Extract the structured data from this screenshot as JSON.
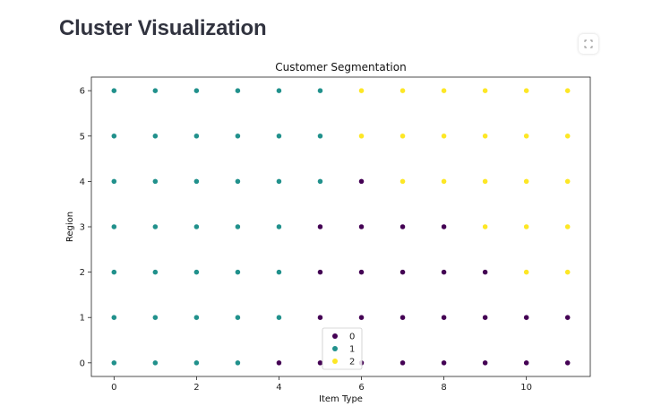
{
  "page": {
    "title": "Cluster Visualization"
  },
  "toolbar": {
    "fullscreen_icon": "fullscreen-icon"
  },
  "chart_data": {
    "type": "scatter",
    "title": "Customer Segmentation",
    "xlabel": "Item Type",
    "ylabel": "Region",
    "xlim": [
      -0.55,
      11.55
    ],
    "ylim": [
      -0.3,
      6.3
    ],
    "xticks": [
      0,
      2,
      4,
      6,
      8,
      10
    ],
    "yticks": [
      0,
      1,
      2,
      3,
      4,
      5,
      6
    ],
    "grid": false,
    "legend_position": "bottom-center",
    "colors": {
      "0": "#440154",
      "1": "#21918c",
      "2": "#fde725"
    },
    "series": [
      {
        "name": "0",
        "points": [
          [
            4,
            0
          ],
          [
            5,
            0
          ],
          [
            6,
            0
          ],
          [
            7,
            0
          ],
          [
            8,
            0
          ],
          [
            9,
            0
          ],
          [
            10,
            0
          ],
          [
            11,
            0
          ],
          [
            5,
            1
          ],
          [
            6,
            1
          ],
          [
            7,
            1
          ],
          [
            8,
            1
          ],
          [
            9,
            1
          ],
          [
            10,
            1
          ],
          [
            11,
            1
          ],
          [
            5,
            2
          ],
          [
            6,
            2
          ],
          [
            7,
            2
          ],
          [
            8,
            2
          ],
          [
            9,
            2
          ],
          [
            5,
            3
          ],
          [
            6,
            3
          ],
          [
            7,
            3
          ],
          [
            8,
            3
          ],
          [
            6,
            4
          ]
        ]
      },
      {
        "name": "1",
        "points": [
          [
            0,
            0
          ],
          [
            1,
            0
          ],
          [
            2,
            0
          ],
          [
            3,
            0
          ],
          [
            0,
            1
          ],
          [
            1,
            1
          ],
          [
            2,
            1
          ],
          [
            3,
            1
          ],
          [
            4,
            1
          ],
          [
            0,
            2
          ],
          [
            1,
            2
          ],
          [
            2,
            2
          ],
          [
            3,
            2
          ],
          [
            4,
            2
          ],
          [
            0,
            3
          ],
          [
            1,
            3
          ],
          [
            2,
            3
          ],
          [
            3,
            3
          ],
          [
            4,
            3
          ],
          [
            0,
            4
          ],
          [
            1,
            4
          ],
          [
            2,
            4
          ],
          [
            3,
            4
          ],
          [
            4,
            4
          ],
          [
            5,
            4
          ],
          [
            0,
            5
          ],
          [
            1,
            5
          ],
          [
            2,
            5
          ],
          [
            3,
            5
          ],
          [
            4,
            5
          ],
          [
            5,
            5
          ],
          [
            0,
            6
          ],
          [
            1,
            6
          ],
          [
            2,
            6
          ],
          [
            3,
            6
          ],
          [
            4,
            6
          ],
          [
            5,
            6
          ]
        ]
      },
      {
        "name": "2",
        "points": [
          [
            10,
            2
          ],
          [
            11,
            2
          ],
          [
            9,
            3
          ],
          [
            10,
            3
          ],
          [
            11,
            3
          ],
          [
            7,
            4
          ],
          [
            8,
            4
          ],
          [
            9,
            4
          ],
          [
            10,
            4
          ],
          [
            11,
            4
          ],
          [
            6,
            5
          ],
          [
            7,
            5
          ],
          [
            8,
            5
          ],
          [
            9,
            5
          ],
          [
            10,
            5
          ],
          [
            11,
            5
          ],
          [
            6,
            6
          ],
          [
            7,
            6
          ],
          [
            8,
            6
          ],
          [
            9,
            6
          ],
          [
            10,
            6
          ],
          [
            11,
            6
          ]
        ]
      }
    ]
  }
}
